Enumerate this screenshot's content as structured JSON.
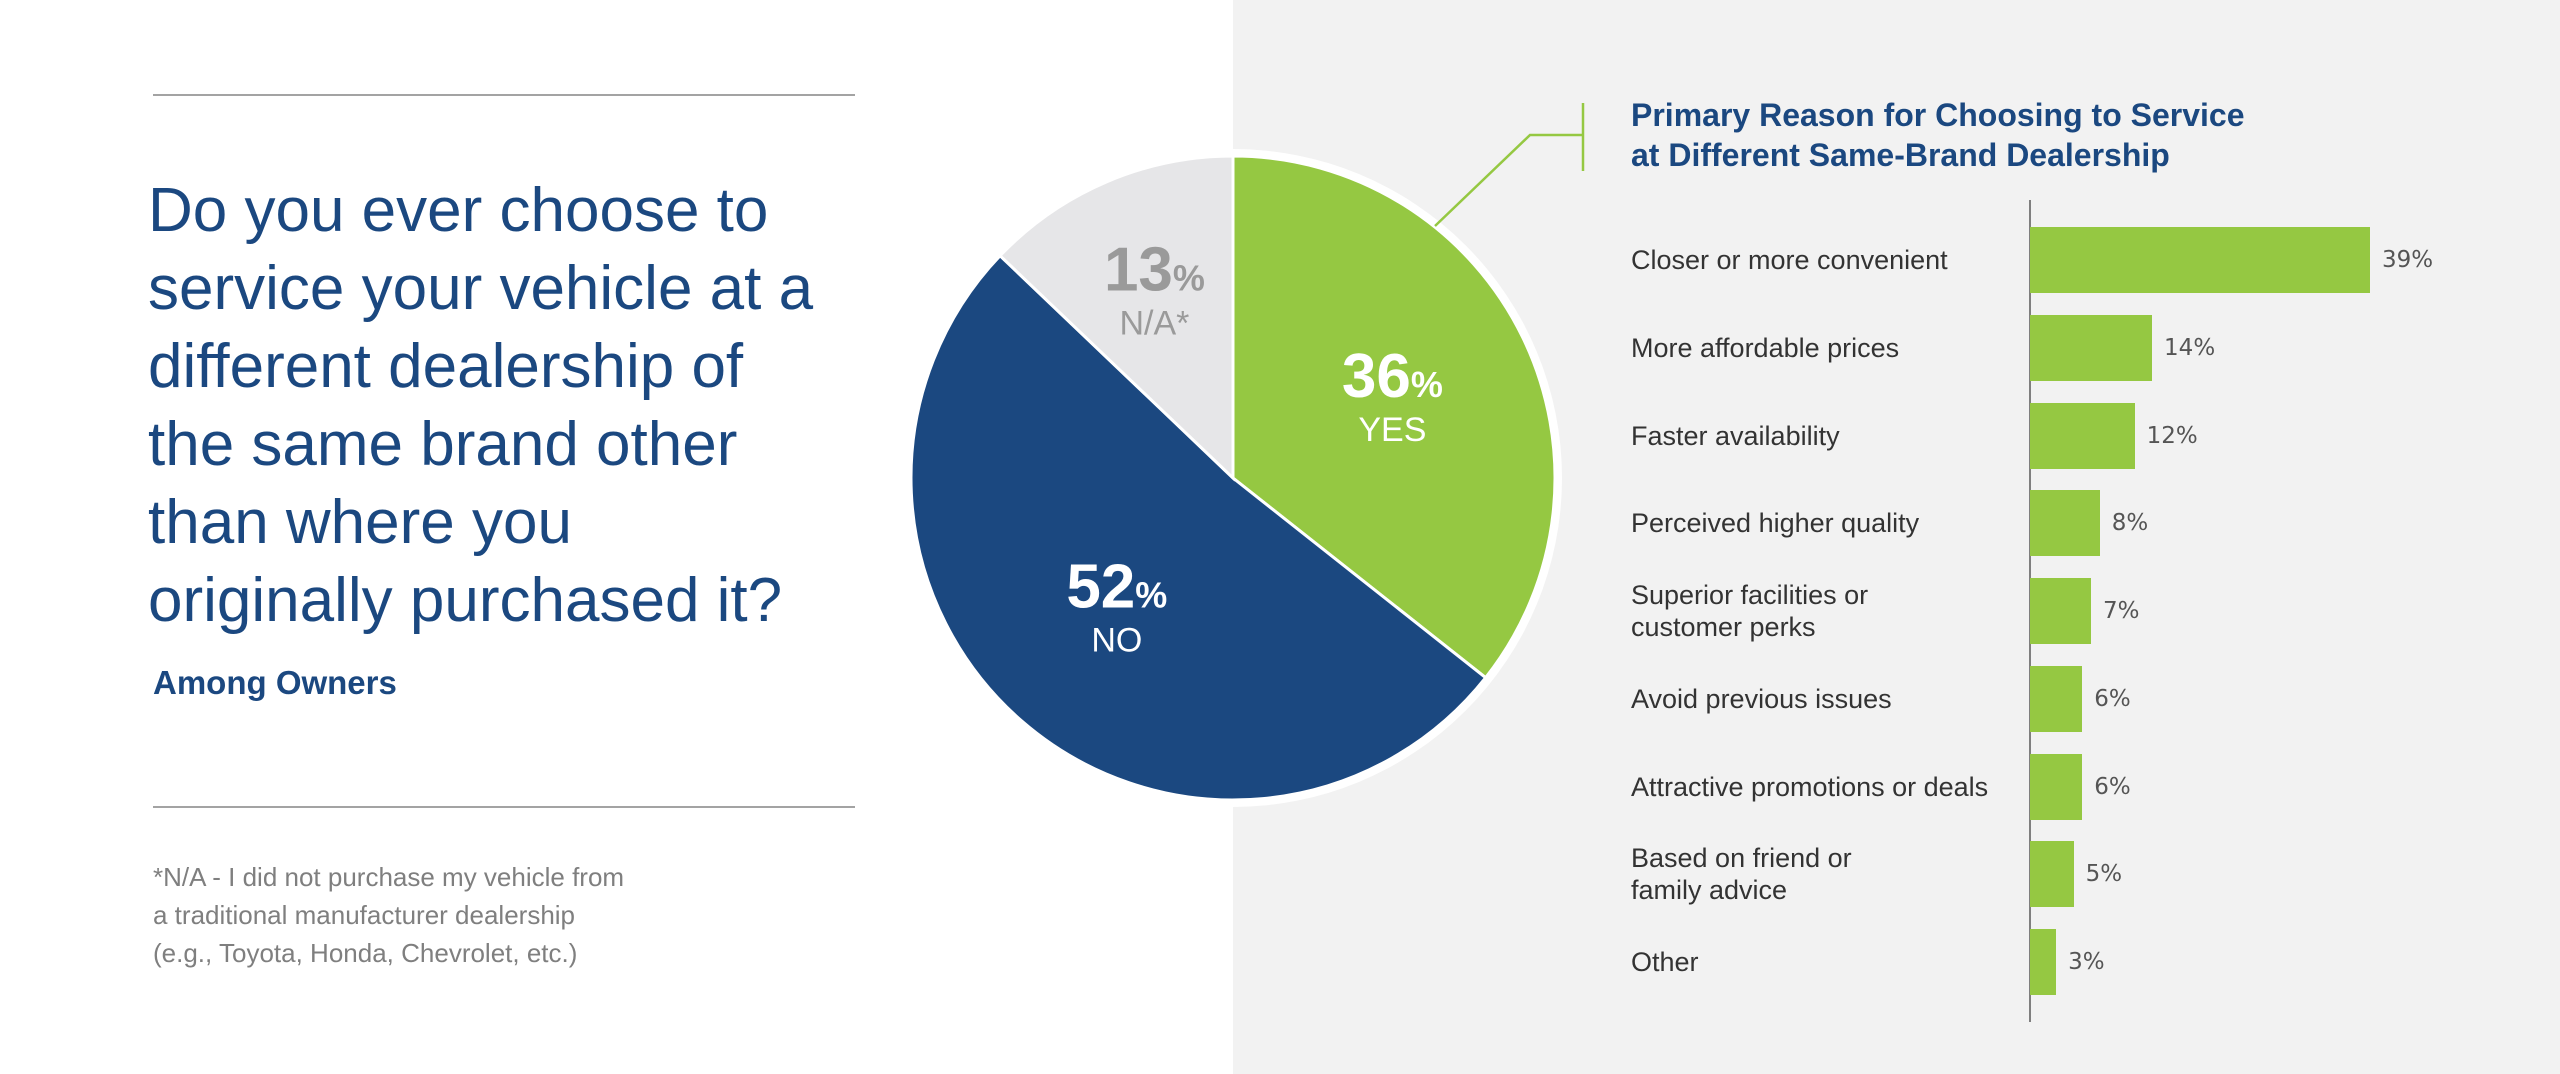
{
  "question": {
    "lines": [
      "Do you ever choose to",
      "service your vehicle at a",
      "different dealership of",
      "the same brand other",
      "than where you",
      "originally purchased it?"
    ],
    "subtitle": "Among Owners"
  },
  "footnote": {
    "lines": [
      "*N/A - I did not purchase my vehicle from",
      "a traditional manufacturer dealership",
      "(e.g., Toyota, Honda, Chevrolet, etc.)"
    ]
  },
  "pie": {
    "percent_sign": "%",
    "slices": [
      {
        "value": 36,
        "label": "YES",
        "color": "#95c842",
        "number_color": "#ffffff",
        "label_color": "#ffffff"
      },
      {
        "value": 52,
        "label": "NO",
        "color": "#1b4880",
        "number_color": "#ffffff",
        "label_color": "#ffffff"
      },
      {
        "value": 13,
        "label": "N/A*",
        "color": "#e6e6e8",
        "number_color": "#9a9a9a",
        "label_color": "#9a9a9a"
      }
    ]
  },
  "colors": {
    "brand_blue": "#1b4880",
    "accent_green": "#95c842",
    "na_gray": "#e6e6e8",
    "right_panel": "#f2f2f2"
  },
  "chart_data": [
    {
      "type": "pie",
      "title": "Do you ever choose to service your vehicle at a different dealership of the same brand other than where you originally purchased it?",
      "subtitle": "Among Owners",
      "categories": [
        "YES",
        "NO",
        "N/A*"
      ],
      "values": [
        36,
        52,
        13
      ],
      "unit": "%"
    },
    {
      "type": "bar",
      "orientation": "horizontal",
      "title_lines": [
        "Primary Reason for Choosing to Service",
        "at Different Same-Brand Dealership"
      ],
      "categories": [
        [
          "Closer or more convenient"
        ],
        [
          "More affordable prices"
        ],
        [
          "Faster availability"
        ],
        [
          "Perceived higher quality"
        ],
        [
          "Superior facilities or",
          "customer perks"
        ],
        [
          "Avoid previous issues"
        ],
        [
          "Attractive promotions or deals"
        ],
        [
          "Based on friend or",
          "family advice"
        ],
        [
          "Other"
        ]
      ],
      "values": [
        39,
        14,
        12,
        8,
        7,
        6,
        6,
        5,
        3
      ],
      "value_labels": [
        "39%",
        "14%",
        "12%",
        "8%",
        "7%",
        "6%",
        "6%",
        "5%",
        "3%"
      ],
      "grid": false
    }
  ]
}
